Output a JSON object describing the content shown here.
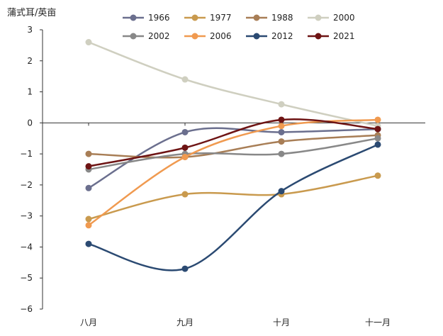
{
  "chart_data": {
    "type": "line",
    "title": "",
    "unit_label": "蒲式耳/英亩",
    "xlabel": "",
    "ylabel": "",
    "categories": [
      "八月",
      "九月",
      "十月",
      "十一月"
    ],
    "ylim": [
      -6,
      3
    ],
    "yticks": [
      "3",
      "2",
      "1",
      "0",
      "−1",
      "−2",
      "−3",
      "−4",
      "−5",
      "−6"
    ],
    "grid": false,
    "legend_position": "top",
    "series": [
      {
        "name": "1966",
        "color": "#6b6f8e",
        "values": [
          -2.1,
          -0.3,
          -0.3,
          -0.2
        ]
      },
      {
        "name": "1977",
        "color": "#c99a4e",
        "values": [
          -3.1,
          -2.3,
          -2.3,
          -1.7
        ]
      },
      {
        "name": "1988",
        "color": "#a87e56",
        "values": [
          -1.0,
          -1.1,
          -0.6,
          -0.4
        ]
      },
      {
        "name": "2000",
        "color": "#cfcfc0",
        "values": [
          2.6,
          1.4,
          0.6,
          -0.1
        ]
      },
      {
        "name": "2002",
        "color": "#888888",
        "values": [
          -1.5,
          -1.0,
          -1.0,
          -0.5
        ]
      },
      {
        "name": "2006",
        "color": "#f09a50",
        "values": [
          -3.3,
          -1.1,
          -0.1,
          0.1
        ]
      },
      {
        "name": "2012",
        "color": "#2b4a72",
        "values": [
          -3.9,
          -4.7,
          -2.2,
          -0.7
        ]
      },
      {
        "name": "2021",
        "color": "#6e1414",
        "values": [
          -1.4,
          -0.8,
          0.1,
          -0.2
        ]
      }
    ]
  }
}
